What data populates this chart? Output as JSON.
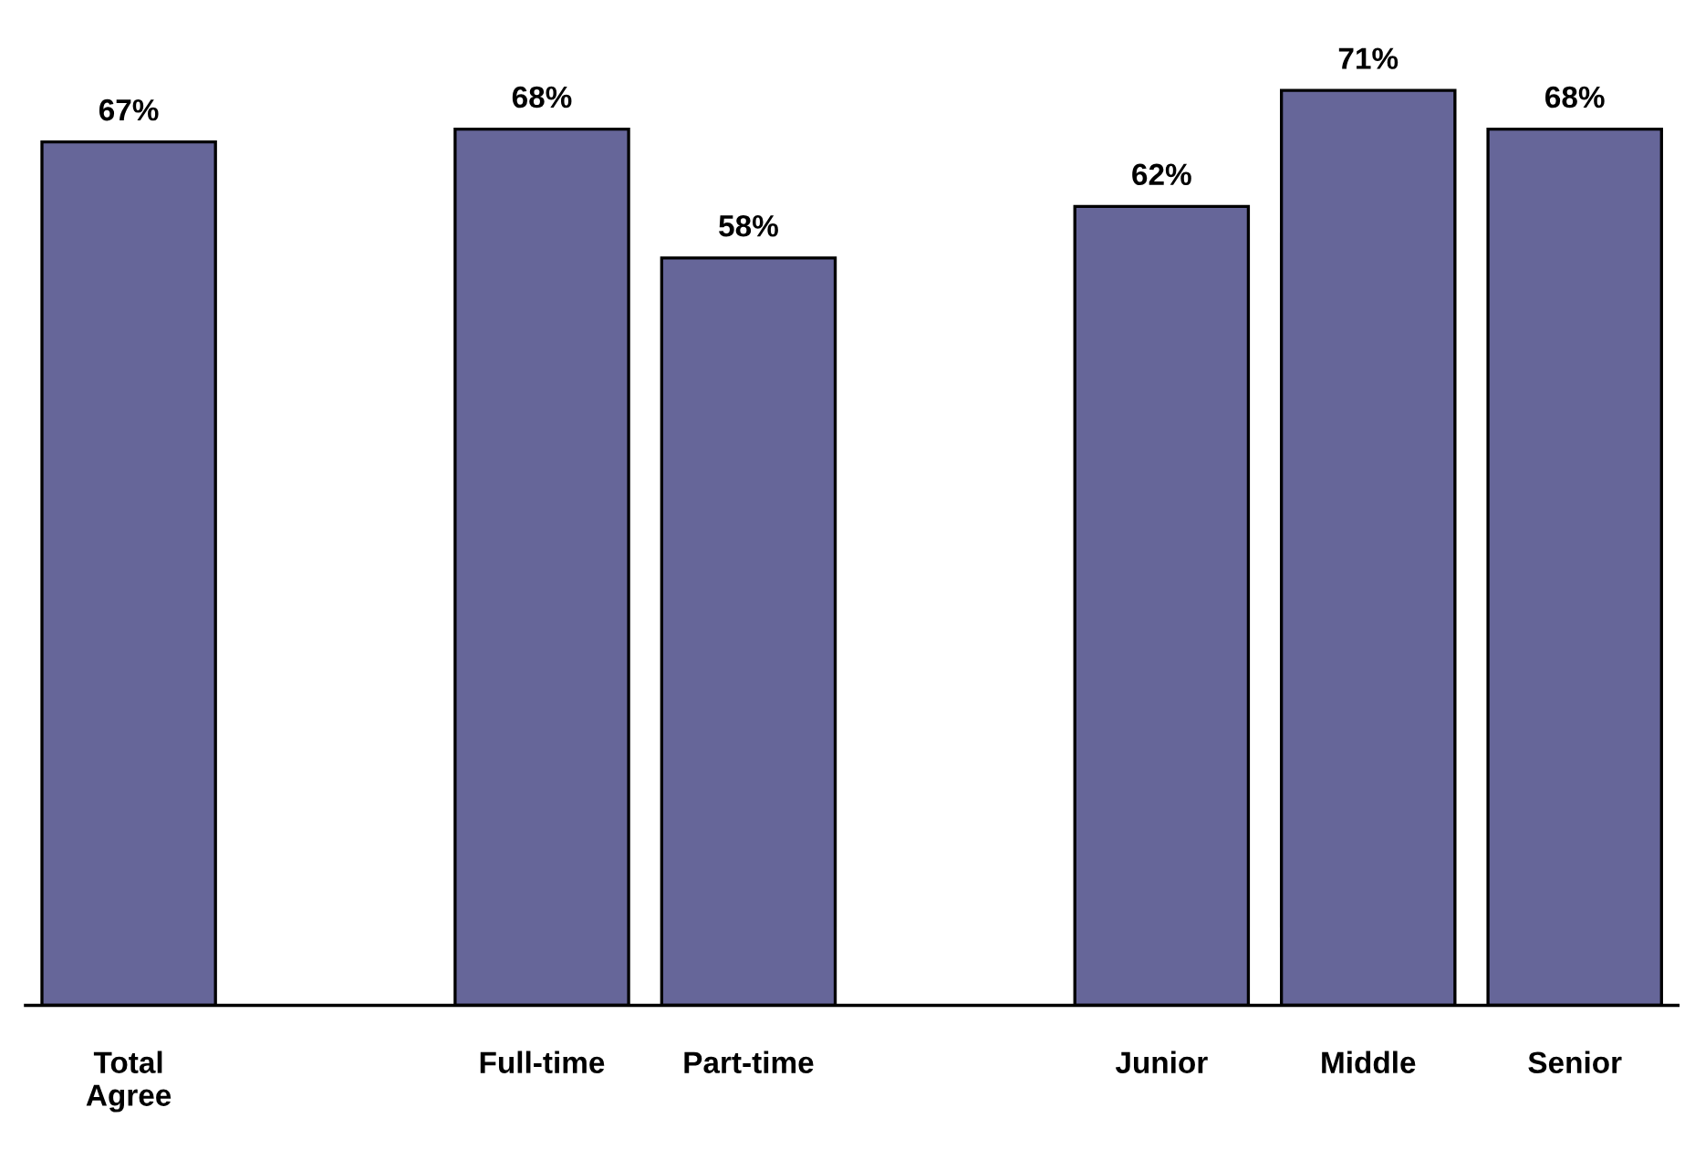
{
  "chart_data": {
    "type": "bar",
    "categories": [
      "Total\nAgree",
      null,
      "Full-time",
      "Part-time",
      null,
      "Junior",
      "Middle",
      "Senior"
    ],
    "values": [
      67,
      null,
      68,
      58,
      null,
      62,
      71,
      68
    ],
    "value_labels": [
      "67%",
      null,
      "68%",
      "58%",
      null,
      "62%",
      "71%",
      "68%"
    ],
    "color": "#666699"
  }
}
